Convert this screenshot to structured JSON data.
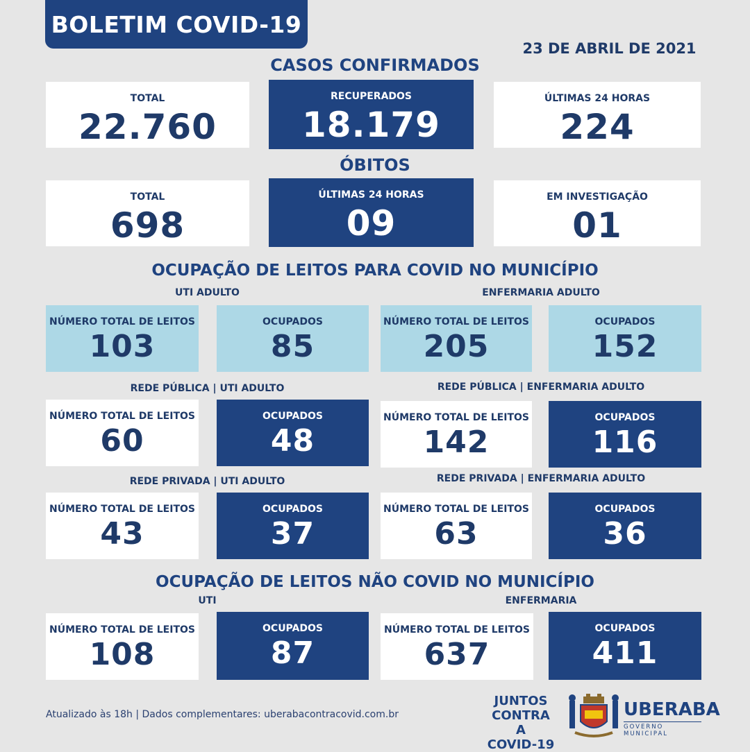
{
  "header": {
    "title": "BOLETIM COVID-19",
    "date": "23 DE ABRIL DE 2021"
  },
  "casos": {
    "title": "CASOS CONFIRMADOS",
    "total": {
      "label": "TOTAL",
      "value": "22.760"
    },
    "recuperados": {
      "label": "RECUPERADOS",
      "value": "18.179"
    },
    "ultimas": {
      "label": "ÚLTIMAS 24 HORAS",
      "value": "224"
    }
  },
  "obitos": {
    "title": "ÓBITOS",
    "total": {
      "label": "TOTAL",
      "value": "698"
    },
    "ultimas": {
      "label": "ÚLTIMAS 24 HORAS",
      "value": "09"
    },
    "investigacao": {
      "label": "EM INVESTIGAÇÃO",
      "value": "01"
    }
  },
  "covid": {
    "title": "OCUPAÇÃO DE LEITOS PARA COVID NO MUNICÍPIO",
    "uti_label": "UTI ADULTO",
    "enf_label": "ENFERMARIA ADULTO",
    "total_label": "NÚMERO TOTAL DE LEITOS",
    "ocup_label": "OCUPADOS",
    "uti": {
      "total": "103",
      "ocupados": "85"
    },
    "enf": {
      "total": "205",
      "ocupados": "152"
    },
    "pub_uti_label": "REDE PÚBLICA | UTI ADULTO",
    "pub_enf_label": "REDE PÚBLICA | ENFERMARIA ADULTO",
    "pub_uti": {
      "total": "60",
      "ocupados": "48"
    },
    "pub_enf": {
      "total": "142",
      "ocupados": "116"
    },
    "priv_uti_label": "REDE PRIVADA | UTI ADULTO",
    "priv_enf_label": "REDE PRIVADA | ENFERMARIA ADULTO",
    "priv_uti": {
      "total": "43",
      "ocupados": "37"
    },
    "priv_enf": {
      "total": "63",
      "ocupados": "36"
    }
  },
  "naocovid": {
    "title": "OCUPAÇÃO DE LEITOS NÃO COVID NO MUNICÍPIO",
    "uti_label": "UTI",
    "enf_label": "ENFERMARIA",
    "uti": {
      "total": "108",
      "ocupados": "87"
    },
    "enf": {
      "total": "637",
      "ocupados": "411"
    }
  },
  "footer": {
    "note": "Atualizado às 18h | Dados complementares: uberabacontracovid.com.br",
    "juntos": [
      "JUNTOS",
      "CONTRA A",
      "COVID-19"
    ],
    "city": "UBERABA",
    "city_sub": "GOVERNO MUNICIPAL",
    "colors": {
      "dark": "#1f4380",
      "light": "#add8e6",
      "bg": "#e6e6e6"
    }
  }
}
